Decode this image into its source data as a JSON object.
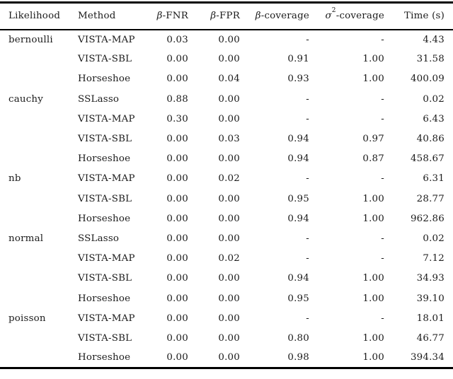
{
  "table": {
    "columns": [
      {
        "id": "likelihood",
        "math": "",
        "sup": "",
        "label": "Likelihood",
        "align": "left"
      },
      {
        "id": "method",
        "math": "",
        "sup": "",
        "label": "Method",
        "align": "left"
      },
      {
        "id": "beta-fnr",
        "math": "β",
        "sup": "",
        "label": "-FNR",
        "align": "right"
      },
      {
        "id": "beta-fpr",
        "math": "β",
        "sup": "",
        "label": "-FPR",
        "align": "right"
      },
      {
        "id": "beta-coverage",
        "math": "β",
        "sup": "",
        "label": "-coverage",
        "align": "right"
      },
      {
        "id": "sigma2-coverage",
        "math": "σ",
        "sup": "2",
        "label": "-coverage",
        "align": "right"
      },
      {
        "id": "time",
        "math": "",
        "sup": "",
        "label": "Time (s)",
        "align": "right"
      }
    ],
    "rows": [
      [
        "bernoulli",
        "VISTA-MAP",
        "0.03",
        "0.00",
        "-",
        "-",
        "4.43"
      ],
      [
        "",
        "VISTA-SBL",
        "0.00",
        "0.00",
        "0.91",
        "1.00",
        "31.58"
      ],
      [
        "",
        "Horseshoe",
        "0.00",
        "0.04",
        "0.93",
        "1.00",
        "400.09"
      ],
      [
        "cauchy",
        "SSLasso",
        "0.88",
        "0.00",
        "-",
        "-",
        "0.02"
      ],
      [
        "",
        "VISTA-MAP",
        "0.30",
        "0.00",
        "-",
        "-",
        "6.43"
      ],
      [
        "",
        "VISTA-SBL",
        "0.00",
        "0.03",
        "0.94",
        "0.97",
        "40.86"
      ],
      [
        "",
        "Horseshoe",
        "0.00",
        "0.00",
        "0.94",
        "0.87",
        "458.67"
      ],
      [
        "nb",
        "VISTA-MAP",
        "0.00",
        "0.02",
        "-",
        "-",
        "6.31"
      ],
      [
        "",
        "VISTA-SBL",
        "0.00",
        "0.00",
        "0.95",
        "1.00",
        "28.77"
      ],
      [
        "",
        "Horseshoe",
        "0.00",
        "0.00",
        "0.94",
        "1.00",
        "962.86"
      ],
      [
        "normal",
        "SSLasso",
        "0.00",
        "0.00",
        "-",
        "-",
        "0.02"
      ],
      [
        "",
        "VISTA-MAP",
        "0.00",
        "0.02",
        "-",
        "-",
        "7.12"
      ],
      [
        "",
        "VISTA-SBL",
        "0.00",
        "0.00",
        "0.94",
        "1.00",
        "34.93"
      ],
      [
        "",
        "Horseshoe",
        "0.00",
        "0.00",
        "0.95",
        "1.00",
        "39.10"
      ],
      [
        "poisson",
        "VISTA-MAP",
        "0.00",
        "0.00",
        "-",
        "-",
        "18.01"
      ],
      [
        "",
        "VISTA-SBL",
        "0.00",
        "0.00",
        "0.80",
        "1.00",
        "46.77"
      ],
      [
        "",
        "Horseshoe",
        "0.00",
        "0.00",
        "0.98",
        "1.00",
        "394.34"
      ]
    ]
  },
  "colors": {
    "text": "#1b1b1b",
    "rule": "#000000",
    "background": "#ffffff"
  }
}
